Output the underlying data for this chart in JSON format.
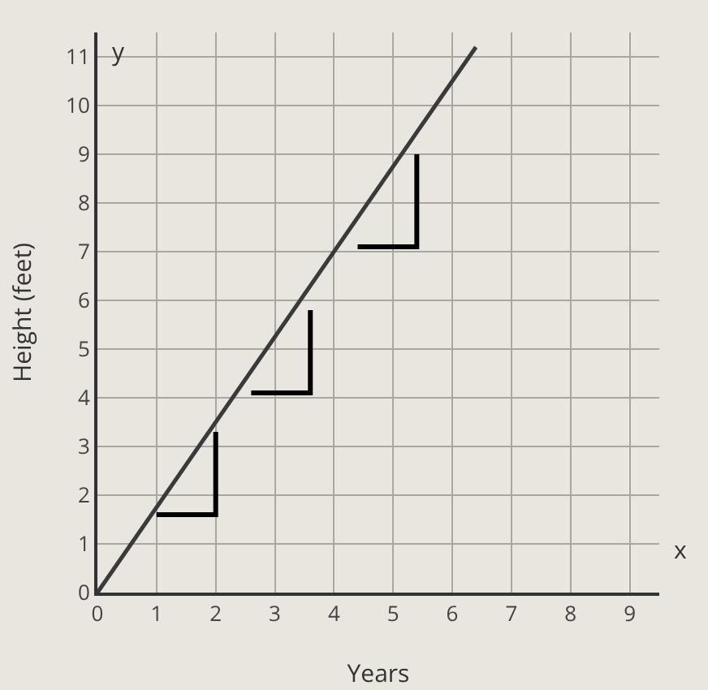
{
  "chart_data": {
    "type": "line",
    "xlabel": "Years",
    "ylabel": "Height (feet)",
    "annotations": [
      "x",
      "y"
    ],
    "x": [
      0,
      6.4
    ],
    "series": [
      {
        "color": "#3a3a3a",
        "values": [
          0,
          11.2
        ]
      }
    ],
    "xlim": [
      0,
      9.5
    ],
    "ylim": [
      0,
      11.5
    ],
    "xticks": [
      0,
      1,
      2,
      3,
      4,
      5,
      6,
      7,
      8,
      9
    ],
    "yticks": [
      0,
      1,
      2,
      3,
      4,
      5,
      6,
      7,
      8,
      9,
      10,
      11
    ],
    "grid": true,
    "marker": "none",
    "line_style": "solid"
  }
}
